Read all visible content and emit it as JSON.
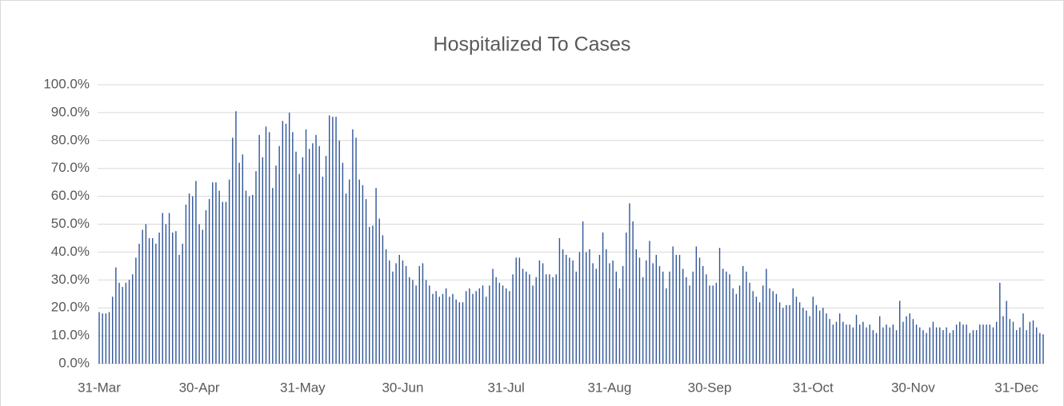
{
  "chart_data": {
    "type": "bar",
    "title": "Hospitalized To Cases",
    "color": "#2f5597",
    "grid": true,
    "ylim": [
      0,
      100
    ],
    "yticks": [
      {
        "value": 0,
        "label": "0.0%"
      },
      {
        "value": 10,
        "label": "10.0%"
      },
      {
        "value": 20,
        "label": "20.0%"
      },
      {
        "value": 30,
        "label": "30.0%"
      },
      {
        "value": 40,
        "label": "40.0%"
      },
      {
        "value": 50,
        "label": "50.0%"
      },
      {
        "value": 60,
        "label": "60.0%"
      },
      {
        "value": 70,
        "label": "70.0%"
      },
      {
        "value": 80,
        "label": "80.0%"
      },
      {
        "value": 90,
        "label": "90.0%"
      },
      {
        "value": 100,
        "label": "100.0%"
      }
    ],
    "categories": [
      "31-Mar",
      null,
      null,
      null,
      null,
      null,
      null,
      null,
      null,
      null,
      null,
      null,
      null,
      null,
      null,
      null,
      null,
      null,
      null,
      null,
      null,
      null,
      null,
      null,
      null,
      null,
      null,
      null,
      null,
      null,
      "30-Apr",
      null,
      null,
      null,
      null,
      null,
      null,
      null,
      null,
      null,
      null,
      null,
      null,
      null,
      null,
      null,
      null,
      null,
      null,
      null,
      null,
      null,
      null,
      null,
      null,
      null,
      null,
      null,
      null,
      null,
      null,
      "31-May",
      null,
      null,
      null,
      null,
      null,
      null,
      null,
      null,
      null,
      null,
      null,
      null,
      null,
      null,
      null,
      null,
      null,
      null,
      null,
      null,
      null,
      null,
      null,
      null,
      null,
      null,
      null,
      null,
      null,
      "30-Jun",
      null,
      null,
      null,
      null,
      null,
      null,
      null,
      null,
      null,
      null,
      null,
      null,
      null,
      null,
      null,
      null,
      null,
      null,
      null,
      null,
      null,
      null,
      null,
      null,
      null,
      null,
      null,
      null,
      null,
      null,
      "31-Jul",
      null,
      null,
      null,
      null,
      null,
      null,
      null,
      null,
      null,
      null,
      null,
      null,
      null,
      null,
      null,
      null,
      null,
      null,
      null,
      null,
      null,
      null,
      null,
      null,
      null,
      null,
      null,
      null,
      null,
      null,
      "31-Aug",
      null,
      null,
      null,
      null,
      null,
      null,
      null,
      null,
      null,
      null,
      null,
      null,
      null,
      null,
      null,
      null,
      null,
      null,
      null,
      null,
      null,
      null,
      null,
      null,
      null,
      null,
      null,
      null,
      null,
      "30-Sep",
      null,
      null,
      null,
      null,
      null,
      null,
      null,
      null,
      null,
      null,
      null,
      null,
      null,
      null,
      null,
      null,
      null,
      null,
      null,
      null,
      null,
      null,
      null,
      null,
      null,
      null,
      null,
      null,
      null,
      null,
      "31-Oct",
      null,
      null,
      null,
      null,
      null,
      null,
      null,
      null,
      null,
      null,
      null,
      null,
      null,
      null,
      null,
      null,
      null,
      null,
      null,
      null,
      null,
      null,
      null,
      null,
      null,
      null,
      null,
      null,
      null,
      "30-Nov",
      null,
      null,
      null,
      null,
      null,
      null,
      null,
      null,
      null,
      null,
      null,
      null,
      null,
      null,
      null,
      null,
      null,
      null,
      null,
      null,
      null,
      null,
      null,
      null,
      null,
      null,
      null,
      null,
      null,
      null,
      "31-Dec",
      null,
      null,
      null,
      null,
      null,
      null,
      null,
      null
    ],
    "values": [
      18.5,
      18,
      18,
      18.5,
      24,
      34.5,
      29,
      27.5,
      29,
      30,
      32,
      38,
      43,
      48,
      50,
      45,
      45,
      43,
      47,
      54,
      50,
      54,
      47,
      47.5,
      39,
      43,
      57,
      61,
      60,
      65.5,
      50,
      48,
      55,
      59,
      65,
      65,
      62,
      58,
      58,
      66,
      81,
      90.5,
      72,
      75,
      62,
      60,
      60.5,
      69,
      82,
      74,
      85,
      83,
      63,
      71,
      78,
      87,
      86,
      90,
      83,
      76,
      68,
      74,
      84,
      77,
      79,
      82,
      78,
      67,
      74.5,
      89,
      88.5,
      88.5,
      80,
      72,
      61,
      66,
      84,
      81,
      66,
      64,
      59,
      49,
      49.5,
      63,
      52,
      46,
      41,
      37,
      33,
      36,
      39,
      37,
      35,
      31,
      30,
      28,
      35,
      36,
      30,
      28,
      25,
      26,
      24,
      25,
      27,
      24,
      25,
      23,
      22,
      22,
      26,
      27,
      25,
      26,
      27,
      28,
      24,
      28,
      34,
      31,
      29,
      28,
      27,
      26,
      32,
      38,
      38,
      34,
      33,
      32,
      28,
      31,
      37,
      36,
      32,
      32,
      31,
      32,
      45,
      41,
      39,
      38,
      37,
      33,
      40,
      51,
      40,
      41,
      36,
      34,
      39,
      47,
      41,
      36,
      37,
      33,
      27,
      35,
      47,
      57.5,
      51,
      41,
      38,
      31,
      37,
      44,
      36,
      39,
      35,
      33,
      27,
      33,
      42,
      39,
      39,
      34,
      31,
      28,
      33,
      42,
      38,
      35,
      32,
      28,
      28,
      29,
      41.5,
      34,
      33,
      32,
      27,
      25,
      28,
      35,
      33,
      29,
      26,
      24,
      22,
      28,
      34,
      27,
      26,
      25,
      22,
      20,
      21,
      21,
      27,
      24,
      22,
      20,
      19,
      17,
      24,
      21,
      19,
      20,
      18,
      16,
      14,
      15,
      18,
      15,
      14,
      14,
      13,
      17.5,
      14,
      15,
      13,
      14,
      12,
      11,
      17,
      13,
      14,
      13,
      14,
      12,
      22.5,
      15,
      17,
      18,
      16,
      14,
      13,
      12,
      11,
      13,
      15,
      13,
      13,
      12,
      13,
      11,
      12,
      14,
      15,
      14,
      14,
      11,
      12,
      12,
      14,
      14,
      14,
      14,
      13,
      15,
      29,
      17,
      22.5,
      16,
      15,
      12,
      13,
      18,
      12,
      15,
      15.5,
      13,
      11,
      10.5
    ]
  }
}
